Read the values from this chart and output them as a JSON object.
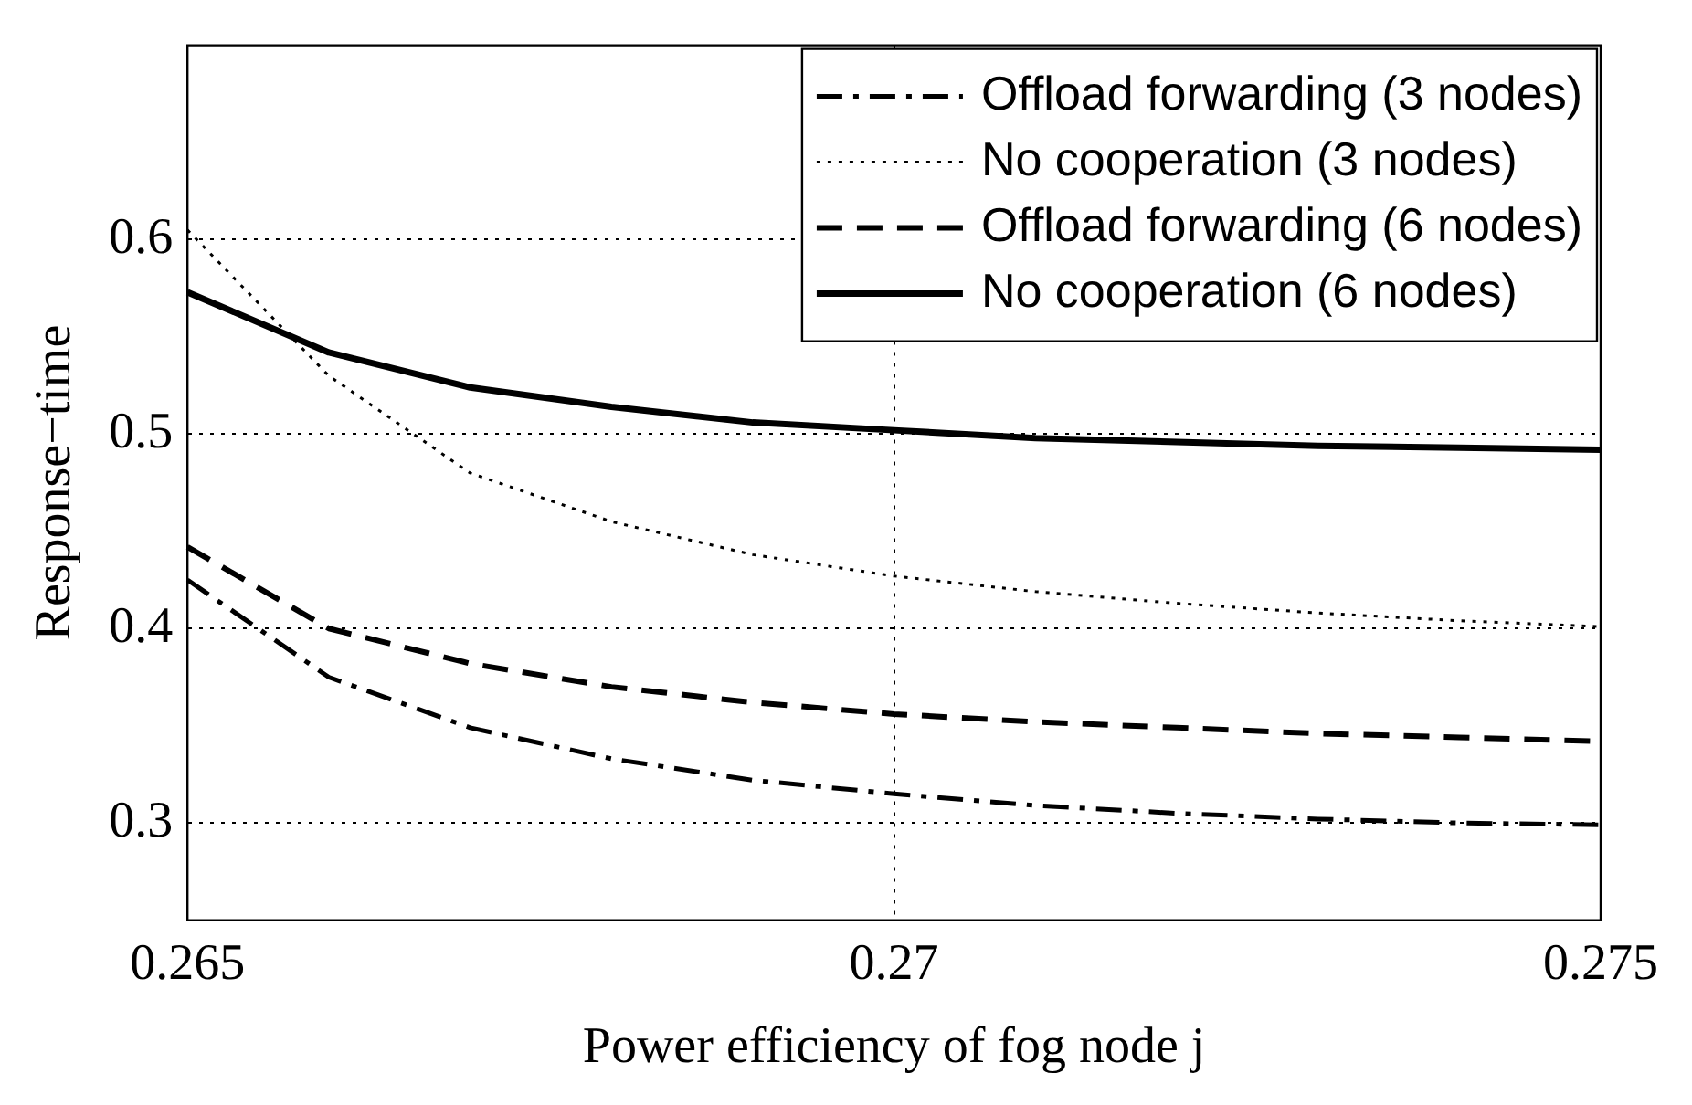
{
  "chart_data": {
    "type": "line",
    "xlabel": "Power efficiency of fog node j",
    "ylabel": "Response−time",
    "x": [
      0.265,
      0.266,
      0.267,
      0.268,
      0.269,
      0.27,
      0.271,
      0.272,
      0.273,
      0.274,
      0.275
    ],
    "series": [
      {
        "name": "Offload forwarding (3 nodes)",
        "color": "#000000",
        "line_style": "dashdot",
        "values": [
          0.425,
          0.375,
          0.349,
          0.333,
          0.322,
          0.315,
          0.309,
          0.305,
          0.302,
          0.3,
          0.299
        ]
      },
      {
        "name": "No cooperation (3 nodes)",
        "color": "#000000",
        "line_style": "dotted",
        "values": [
          0.605,
          0.53,
          0.48,
          0.455,
          0.438,
          0.427,
          0.419,
          0.413,
          0.408,
          0.404,
          0.401
        ]
      },
      {
        "name": "Offload forwarding (6 nodes)",
        "color": "#000000",
        "line_style": "dashed",
        "values": [
          0.442,
          0.4,
          0.382,
          0.37,
          0.362,
          0.356,
          0.352,
          0.349,
          0.346,
          0.344,
          0.342
        ]
      },
      {
        "name": "No cooperation (6 nodes)",
        "color": "#000000",
        "line_style": "solid",
        "values": [
          0.573,
          0.542,
          0.524,
          0.514,
          0.506,
          0.502,
          0.498,
          0.496,
          0.494,
          0.493,
          0.492
        ]
      }
    ],
    "xlim": [
      0.265,
      0.275
    ],
    "xticks": [
      0.265,
      0.27,
      0.275
    ],
    "ylim": [
      0.25,
      0.7
    ],
    "yticks": [
      0.3,
      0.4,
      0.5,
      0.6
    ],
    "grid": true,
    "legend": "top right",
    "marker": "none"
  }
}
